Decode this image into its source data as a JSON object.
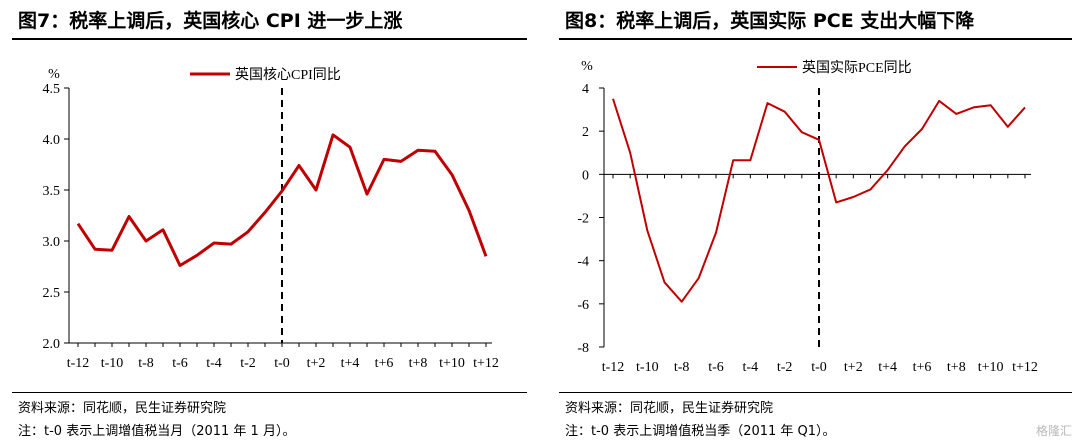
{
  "panels": [
    {
      "title": "图7：税率上调后，英国核心 CPI 进一步上涨",
      "source": "资料来源：同花顺，民生证券研究院",
      "note": "注：t-0 表示上调增值税当月（2011 年 1 月）。"
    },
    {
      "title": "图8：税率上调后，英国实际 PCE 支出大幅下降",
      "source": "资料来源：同花顺，民生证券研究院",
      "note": "注：t-0 表示上调增值税当季（2011 年 Q1）。"
    }
  ],
  "watermark": "格隆汇",
  "colors": {
    "series": "#c00000",
    "axis": "#000000",
    "rule": "#000000"
  },
  "chart_data": [
    {
      "type": "line",
      "unit_label": "%",
      "ylim": [
        2.0,
        4.5
      ],
      "yticks": [
        2.0,
        2.5,
        3.0,
        3.5,
        4.0,
        4.5
      ],
      "ytick_labels": [
        "2.0",
        "2.5",
        "3.0",
        "3.5",
        "4.0",
        "4.5"
      ],
      "x": [
        -12,
        -11,
        -10,
        -9,
        -8,
        -7,
        -6,
        -5,
        -4,
        -3,
        -2,
        -1,
        0,
        1,
        2,
        3,
        4,
        5,
        6,
        7,
        8,
        9,
        10,
        11,
        12
      ],
      "xtick_values": [
        -12,
        -10,
        -8,
        -6,
        -4,
        -2,
        0,
        2,
        4,
        6,
        8,
        10,
        12
      ],
      "xtick_labels": [
        "t-12",
        "t-10",
        "t-8",
        "t-6",
        "t-4",
        "t-2",
        "t-0",
        "t+2",
        "t+4",
        "t+6",
        "t+8",
        "t+10",
        "t+12"
      ],
      "vline_x": 0,
      "grid": false,
      "legend_position": "top-center",
      "series": [
        {
          "name": "英国核心CPI同比",
          "values": [
            3.17,
            2.92,
            2.91,
            3.24,
            3.0,
            3.11,
            2.76,
            2.86,
            2.98,
            2.97,
            3.09,
            3.28,
            3.49,
            3.74,
            3.5,
            4.04,
            3.92,
            3.46,
            3.8,
            3.78,
            3.89,
            3.88,
            3.65,
            3.3,
            2.85
          ]
        }
      ]
    },
    {
      "type": "line",
      "unit_label": "%",
      "ylim": [
        -8,
        4
      ],
      "yticks": [
        -8,
        -6,
        -4,
        -2,
        0,
        2,
        4
      ],
      "ytick_labels": [
        "-8",
        "-6",
        "-4",
        "-2",
        "0",
        "2",
        "4"
      ],
      "x": [
        -12,
        -11,
        -10,
        -9,
        -8,
        -7,
        -6,
        -5,
        -4,
        -3,
        -2,
        -1,
        0,
        1,
        2,
        3,
        4,
        5,
        6,
        7,
        8,
        9,
        10,
        11,
        12
      ],
      "xtick_values": [
        -12,
        -10,
        -8,
        -6,
        -4,
        -2,
        0,
        2,
        4,
        6,
        8,
        10,
        12
      ],
      "xtick_labels": [
        "t-12",
        "t-10",
        "t-8",
        "t-6",
        "t-4",
        "t-2",
        "t-0",
        "t+2",
        "t+4",
        "t+6",
        "t+8",
        "t+10",
        "t+12"
      ],
      "vline_x": 0,
      "grid": false,
      "legend_position": "top-center",
      "series": [
        {
          "name": "英国实际PCE同比",
          "values": [
            3.5,
            1.0,
            -2.6,
            -5.0,
            -5.9,
            -4.8,
            -2.7,
            0.65,
            0.65,
            3.3,
            2.9,
            1.95,
            1.6,
            -1.3,
            -1.05,
            -0.7,
            0.2,
            1.3,
            2.1,
            3.4,
            2.8,
            3.1,
            3.2,
            2.2,
            3.1
          ]
        }
      ]
    }
  ]
}
